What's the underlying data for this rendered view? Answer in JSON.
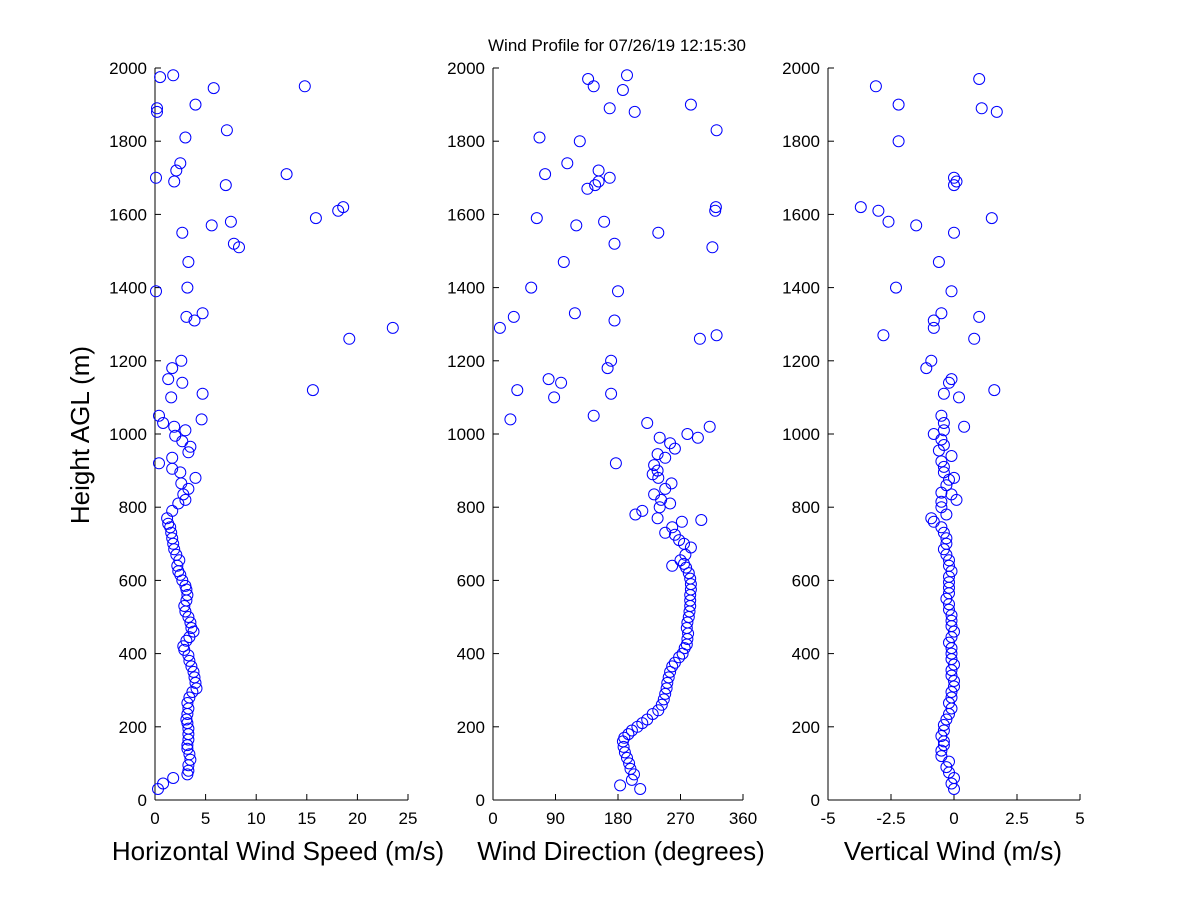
{
  "title": "Wind Profile for  07/26/19 12:15:30",
  "ylabel": "Height AGL (m)",
  "chart_data": [
    {
      "type": "scatter",
      "xlabel": "Horizontal Wind Speed (m/s)",
      "ylabel": "Height AGL (m)",
      "xlim": [
        0,
        25
      ],
      "ylim": [
        0,
        2000
      ],
      "xticks": [
        "0",
        "5",
        "10",
        "15",
        "20",
        "25"
      ],
      "yticks": [
        "0",
        "200",
        "400",
        "600",
        "800",
        "1000",
        "1200",
        "1400",
        "1600",
        "1800",
        "2000"
      ],
      "grid": false,
      "marker": "open-circle",
      "color": "#0000ff",
      "points": [
        [
          0.3,
          30
        ],
        [
          0.8,
          45
        ],
        [
          1.8,
          60
        ],
        [
          3.2,
          70
        ],
        [
          3.3,
          80
        ],
        [
          3.3,
          95
        ],
        [
          3.5,
          110
        ],
        [
          3.4,
          125
        ],
        [
          3.2,
          140
        ],
        [
          3.2,
          150
        ],
        [
          3.3,
          165
        ],
        [
          3.3,
          180
        ],
        [
          3.3,
          195
        ],
        [
          3.2,
          210
        ],
        [
          3.1,
          220
        ],
        [
          3.2,
          235
        ],
        [
          3.3,
          250
        ],
        [
          3.2,
          265
        ],
        [
          3.4,
          280
        ],
        [
          3.7,
          295
        ],
        [
          4.1,
          305
        ],
        [
          4.0,
          320
        ],
        [
          3.9,
          335
        ],
        [
          3.8,
          350
        ],
        [
          3.6,
          365
        ],
        [
          3.4,
          380
        ],
        [
          3.3,
          395
        ],
        [
          2.9,
          410
        ],
        [
          2.8,
          420
        ],
        [
          3.1,
          435
        ],
        [
          3.4,
          445
        ],
        [
          3.8,
          460
        ],
        [
          3.6,
          470
        ],
        [
          3.5,
          485
        ],
        [
          3.3,
          500
        ],
        [
          3.0,
          515
        ],
        [
          2.9,
          530
        ],
        [
          3.1,
          545
        ],
        [
          3.2,
          560
        ],
        [
          3.1,
          575
        ],
        [
          3.0,
          585
        ],
        [
          2.7,
          600
        ],
        [
          2.5,
          615
        ],
        [
          2.3,
          625
        ],
        [
          2.2,
          640
        ],
        [
          2.4,
          655
        ],
        [
          2.1,
          670
        ],
        [
          1.9,
          685
        ],
        [
          1.8,
          700
        ],
        [
          1.7,
          715
        ],
        [
          1.6,
          730
        ],
        [
          1.5,
          745
        ],
        [
          1.3,
          755
        ],
        [
          1.2,
          770
        ],
        [
          1.7,
          790
        ],
        [
          2.3,
          810
        ],
        [
          3.0,
          820
        ],
        [
          2.8,
          835
        ],
        [
          3.3,
          850
        ],
        [
          2.6,
          865
        ],
        [
          4.0,
          880
        ],
        [
          2.5,
          895
        ],
        [
          1.7,
          905
        ],
        [
          0.4,
          920
        ],
        [
          1.7,
          935
        ],
        [
          3.3,
          950
        ],
        [
          3.5,
          965
        ],
        [
          2.7,
          980
        ],
        [
          2.0,
          995
        ],
        [
          3.0,
          1010
        ],
        [
          1.9,
          1020
        ],
        [
          0.8,
          1030
        ],
        [
          0.4,
          1050
        ],
        [
          4.6,
          1040
        ],
        [
          1.6,
          1100
        ],
        [
          4.7,
          1110
        ],
        [
          15.6,
          1120
        ],
        [
          2.7,
          1140
        ],
        [
          1.3,
          1150
        ],
        [
          1.7,
          1180
        ],
        [
          2.6,
          1200
        ],
        [
          19.2,
          1260
        ],
        [
          23.5,
          1290
        ],
        [
          3.1,
          1320
        ],
        [
          3.9,
          1310
        ],
        [
          4.7,
          1330
        ],
        [
          0.1,
          1390
        ],
        [
          3.2,
          1400
        ],
        [
          3.3,
          1470
        ],
        [
          2.7,
          1550
        ],
        [
          8.3,
          1510
        ],
        [
          7.8,
          1520
        ],
        [
          5.6,
          1570
        ],
        [
          7.5,
          1580
        ],
        [
          15.9,
          1590
        ],
        [
          18.1,
          1610
        ],
        [
          18.6,
          1620
        ],
        [
          7.0,
          1680
        ],
        [
          1.9,
          1690
        ],
        [
          0.1,
          1700
        ],
        [
          13.0,
          1710
        ],
        [
          2.1,
          1720
        ],
        [
          2.5,
          1740
        ],
        [
          3.0,
          1810
        ],
        [
          7.1,
          1830
        ],
        [
          4.0,
          1900
        ],
        [
          0.2,
          1880
        ],
        [
          0.2,
          1890
        ],
        [
          14.8,
          1950
        ],
        [
          5.8,
          1945
        ],
        [
          0.5,
          1975
        ],
        [
          1.8,
          1980
        ]
      ]
    },
    {
      "type": "scatter",
      "xlabel": "Wind Direction (degrees)",
      "xlim": [
        0,
        360
      ],
      "ylim": [
        0,
        2000
      ],
      "xticks": [
        "0",
        "90",
        "180",
        "270",
        "360"
      ],
      "yticks": [
        "0",
        "200",
        "400",
        "600",
        "800",
        "1000",
        "1200",
        "1400",
        "1600",
        "1800",
        "2000"
      ],
      "grid": false,
      "marker": "open-circle",
      "color": "#0000ff",
      "points": [
        [
          212,
          30
        ],
        [
          183,
          40
        ],
        [
          200,
          55
        ],
        [
          203,
          70
        ],
        [
          198,
          85
        ],
        [
          196,
          100
        ],
        [
          193,
          115
        ],
        [
          190,
          130
        ],
        [
          188,
          145
        ],
        [
          187,
          160
        ],
        [
          189,
          170
        ],
        [
          195,
          180
        ],
        [
          200,
          190
        ],
        [
          208,
          200
        ],
        [
          215,
          210
        ],
        [
          222,
          220
        ],
        [
          230,
          235
        ],
        [
          238,
          245
        ],
        [
          243,
          260
        ],
        [
          246,
          275
        ],
        [
          248,
          290
        ],
        [
          250,
          305
        ],
        [
          251,
          320
        ],
        [
          253,
          335
        ],
        [
          255,
          350
        ],
        [
          258,
          365
        ],
        [
          262,
          375
        ],
        [
          268,
          390
        ],
        [
          273,
          400
        ],
        [
          276,
          415
        ],
        [
          279,
          425
        ],
        [
          280,
          440
        ],
        [
          281,
          455
        ],
        [
          279,
          470
        ],
        [
          280,
          485
        ],
        [
          282,
          500
        ],
        [
          283,
          515
        ],
        [
          284,
          530
        ],
        [
          284,
          545
        ],
        [
          284,
          560
        ],
        [
          285,
          575
        ],
        [
          285,
          590
        ],
        [
          284,
          605
        ],
        [
          282,
          620
        ],
        [
          278,
          635
        ],
        [
          275,
          645
        ],
        [
          258,
          640
        ],
        [
          270,
          655
        ],
        [
          277,
          670
        ],
        [
          285,
          690
        ],
        [
          275,
          700
        ],
        [
          268,
          710
        ],
        [
          262,
          725
        ],
        [
          248,
          730
        ],
        [
          258,
          745
        ],
        [
          272,
          760
        ],
        [
          237,
          770
        ],
        [
          300,
          765
        ],
        [
          205,
          780
        ],
        [
          215,
          790
        ],
        [
          240,
          800
        ],
        [
          255,
          810
        ],
        [
          242,
          820
        ],
        [
          232,
          835
        ],
        [
          248,
          850
        ],
        [
          257,
          865
        ],
        [
          238,
          880
        ],
        [
          230,
          890
        ],
        [
          237,
          900
        ],
        [
          232,
          915
        ],
        [
          177,
          920
        ],
        [
          248,
          935
        ],
        [
          237,
          945
        ],
        [
          262,
          960
        ],
        [
          255,
          975
        ],
        [
          240,
          990
        ],
        [
          280,
          1000
        ],
        [
          295,
          990
        ],
        [
          312,
          1020
        ],
        [
          222,
          1030
        ],
        [
          170,
          1110
        ],
        [
          145,
          1050
        ],
        [
          25,
          1040
        ],
        [
          88,
          1100
        ],
        [
          80,
          1150
        ],
        [
          98,
          1140
        ],
        [
          35,
          1120
        ],
        [
          165,
          1180
        ],
        [
          170,
          1200
        ],
        [
          10,
          1290
        ],
        [
          30,
          1320
        ],
        [
          118,
          1330
        ],
        [
          175,
          1310
        ],
        [
          298,
          1260
        ],
        [
          322,
          1270
        ],
        [
          180,
          1390
        ],
        [
          55,
          1400
        ],
        [
          102,
          1470
        ],
        [
          238,
          1550
        ],
        [
          316,
          1510
        ],
        [
          175,
          1520
        ],
        [
          120,
          1570
        ],
        [
          160,
          1580
        ],
        [
          63,
          1590
        ],
        [
          320,
          1610
        ],
        [
          321,
          1620
        ],
        [
          136,
          1670
        ],
        [
          147,
          1680
        ],
        [
          168,
          1700
        ],
        [
          152,
          1690
        ],
        [
          75,
          1710
        ],
        [
          107,
          1740
        ],
        [
          152,
          1720
        ],
        [
          67,
          1810
        ],
        [
          125,
          1800
        ],
        [
          322,
          1830
        ],
        [
          168,
          1890
        ],
        [
          204,
          1880
        ],
        [
          285,
          1900
        ],
        [
          145,
          1950
        ],
        [
          187,
          1940
        ],
        [
          137,
          1970
        ],
        [
          193,
          1980
        ]
      ]
    },
    {
      "type": "scatter",
      "xlabel": "Vertical Wind (m/s)",
      "xlim": [
        -5,
        5
      ],
      "ylim": [
        0,
        2000
      ],
      "xticks": [
        "-5",
        "-2.5",
        "0",
        "2.5",
        "5"
      ],
      "yticks": [
        "0",
        "200",
        "400",
        "600",
        "800",
        "1000",
        "1200",
        "1400",
        "1600",
        "1800",
        "2000"
      ],
      "grid": false,
      "marker": "open-circle",
      "color": "#0000ff",
      "points": [
        [
          0.0,
          30
        ],
        [
          -0.1,
          45
        ],
        [
          0.0,
          60
        ],
        [
          -0.2,
          75
        ],
        [
          -0.3,
          90
        ],
        [
          -0.2,
          105
        ],
        [
          -0.5,
          120
        ],
        [
          -0.5,
          135
        ],
        [
          -0.4,
          150
        ],
        [
          -0.4,
          160
        ],
        [
          -0.5,
          175
        ],
        [
          -0.4,
          190
        ],
        [
          -0.4,
          205
        ],
        [
          -0.3,
          220
        ],
        [
          -0.2,
          235
        ],
        [
          -0.1,
          250
        ],
        [
          -0.2,
          265
        ],
        [
          -0.1,
          280
        ],
        [
          -0.1,
          295
        ],
        [
          0.0,
          310
        ],
        [
          0.0,
          325
        ],
        [
          -0.1,
          340
        ],
        [
          -0.1,
          355
        ],
        [
          0.0,
          370
        ],
        [
          -0.1,
          385
        ],
        [
          -0.1,
          400
        ],
        [
          -0.1,
          415
        ],
        [
          -0.2,
          430
        ],
        [
          -0.1,
          445
        ],
        [
          0.0,
          460
        ],
        [
          -0.1,
          475
        ],
        [
          -0.1,
          490
        ],
        [
          -0.1,
          505
        ],
        [
          -0.2,
          520
        ],
        [
          -0.2,
          535
        ],
        [
          -0.3,
          550
        ],
        [
          -0.2,
          565
        ],
        [
          -0.2,
          580
        ],
        [
          -0.2,
          595
        ],
        [
          -0.2,
          610
        ],
        [
          -0.1,
          625
        ],
        [
          -0.2,
          640
        ],
        [
          -0.2,
          655
        ],
        [
          -0.3,
          670
        ],
        [
          -0.4,
          685
        ],
        [
          -0.3,
          700
        ],
        [
          -0.3,
          715
        ],
        [
          -0.4,
          730
        ],
        [
          -0.5,
          745
        ],
        [
          -0.8,
          760
        ],
        [
          -0.9,
          770
        ],
        [
          -0.3,
          780
        ],
        [
          -0.5,
          800
        ],
        [
          -0.5,
          815
        ],
        [
          0.1,
          820
        ],
        [
          -0.1,
          835
        ],
        [
          -0.5,
          840
        ],
        [
          -0.3,
          860
        ],
        [
          -0.2,
          875
        ],
        [
          0.0,
          880
        ],
        [
          -0.4,
          895
        ],
        [
          -0.4,
          910
        ],
        [
          -0.5,
          925
        ],
        [
          -0.1,
          940
        ],
        [
          -0.6,
          955
        ],
        [
          -0.4,
          970
        ],
        [
          -0.5,
          985
        ],
        [
          -0.8,
          1000
        ],
        [
          -0.4,
          1010
        ],
        [
          0.4,
          1020
        ],
        [
          -0.4,
          1030
        ],
        [
          -0.5,
          1050
        ],
        [
          -0.4,
          1110
        ],
        [
          0.2,
          1100
        ],
        [
          1.6,
          1120
        ],
        [
          -0.2,
          1140
        ],
        [
          -0.1,
          1150
        ],
        [
          -1.1,
          1180
        ],
        [
          -0.9,
          1200
        ],
        [
          0.8,
          1260
        ],
        [
          -2.8,
          1270
        ],
        [
          -0.8,
          1290
        ],
        [
          -0.8,
          1310
        ],
        [
          1.0,
          1320
        ],
        [
          -0.5,
          1330
        ],
        [
          -0.1,
          1390
        ],
        [
          -2.3,
          1400
        ],
        [
          -0.6,
          1470
        ],
        [
          0.0,
          1550
        ],
        [
          1.5,
          1590
        ],
        [
          -3.7,
          1620
        ],
        [
          -3.0,
          1610
        ],
        [
          -2.6,
          1580
        ],
        [
          -1.5,
          1570
        ],
        [
          0.0,
          1680
        ],
        [
          0.1,
          1690
        ],
        [
          0.0,
          1700
        ],
        [
          -2.2,
          1800
        ],
        [
          -2.2,
          1900
        ],
        [
          1.1,
          1890
        ],
        [
          1.7,
          1880
        ],
        [
          -3.1,
          1950
        ],
        [
          1.0,
          1970
        ]
      ]
    }
  ]
}
